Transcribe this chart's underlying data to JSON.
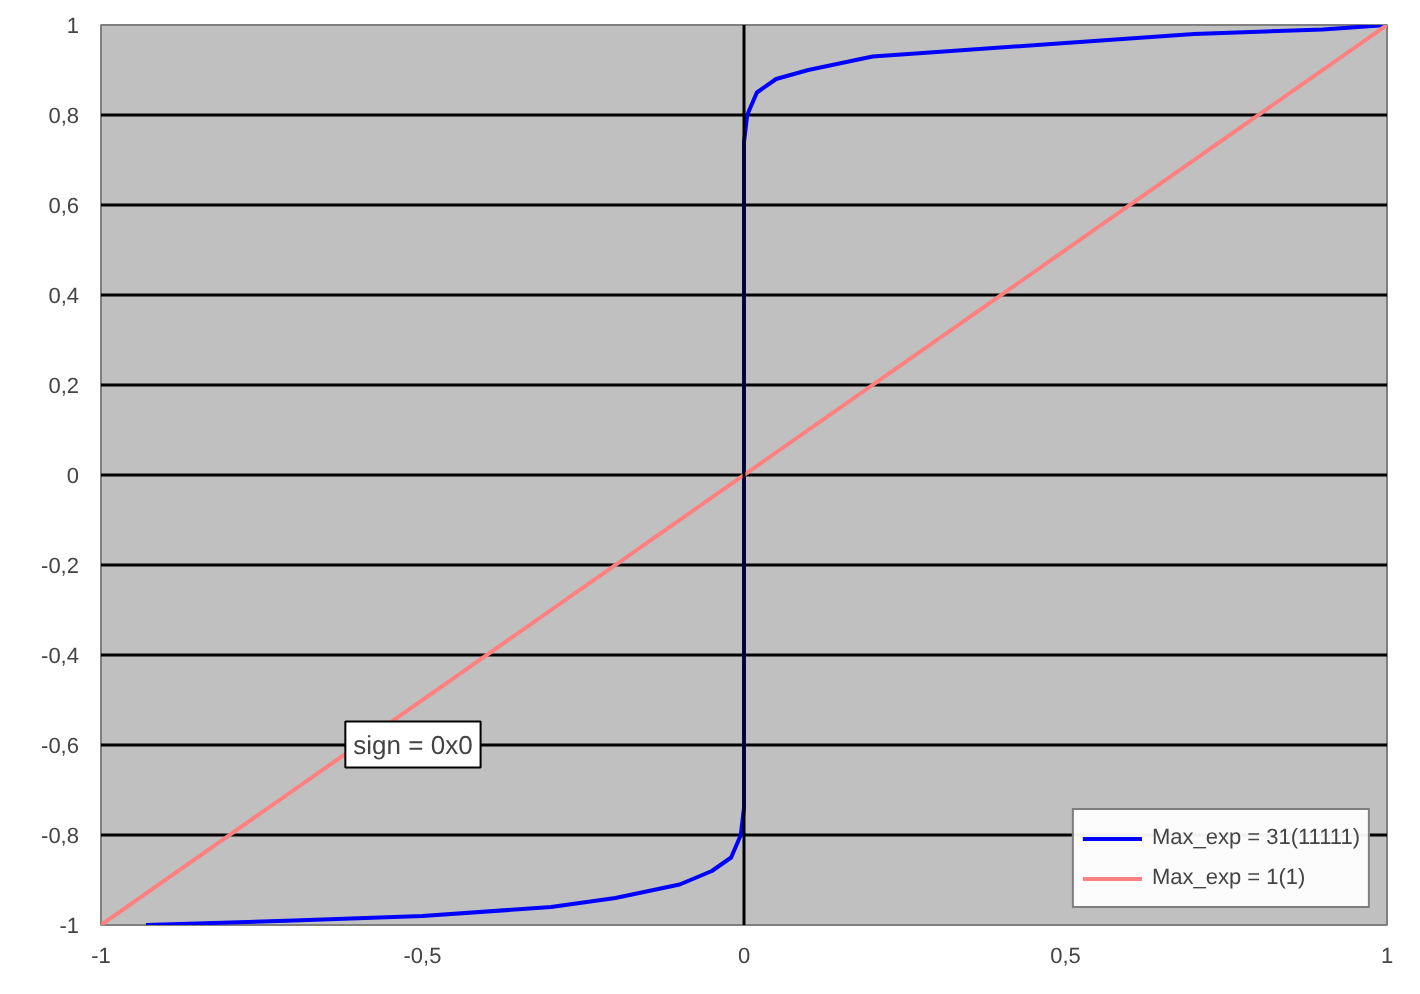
{
  "chart_data": {
    "type": "line",
    "xlim": [
      -1,
      1
    ],
    "ylim": [
      -1,
      1
    ],
    "xticks": [
      -1,
      {
        "value": -0.5,
        "label": "-0,5"
      },
      0,
      {
        "value": 0.5,
        "label": "0,5"
      },
      1
    ],
    "yticks": [
      -1,
      {
        "value": -0.8,
        "label": "-0,8"
      },
      {
        "value": -0.6,
        "label": "-0,6"
      },
      {
        "value": -0.4,
        "label": "-0,4"
      },
      {
        "value": -0.2,
        "label": "-0,2"
      },
      0,
      {
        "value": 0.2,
        "label": "0,2"
      },
      {
        "value": 0.4,
        "label": "0,4"
      },
      {
        "value": 0.6,
        "label": "0,6"
      },
      {
        "value": 0.8,
        "label": "0,8"
      },
      1
    ],
    "grid": "y",
    "legend": "bottom right",
    "marker": "none",
    "line_style": "solid",
    "series": [
      {
        "name": "Max_exp = 31(11111)",
        "color": "#0000ff",
        "x": [
          -0.93,
          -0.7,
          -0.5,
          -0.3,
          -0.2,
          -0.1,
          -0.05,
          -0.02,
          -0.005,
          0,
          0,
          0.005,
          0.02,
          0.05,
          0.1,
          0.2,
          0.3,
          0.5,
          0.7,
          0.9,
          1
        ],
        "values": [
          -1,
          -0.99,
          -0.98,
          -0.96,
          -0.94,
          -0.91,
          -0.88,
          -0.85,
          -0.8,
          -0.74,
          0.74,
          0.8,
          0.85,
          0.88,
          0.9,
          0.93,
          0.94,
          0.96,
          0.98,
          0.99,
          1
        ]
      },
      {
        "name": "Max_exp = 1(1)",
        "color": "#ff8080",
        "x": [
          -1,
          1
        ],
        "values": [
          -1,
          1
        ]
      }
    ],
    "ref_lines": [
      {
        "axis": "x",
        "value": 0,
        "color": "#000000"
      }
    ],
    "annotations": [
      {
        "text": "sign = 0x0",
        "x": -0.62,
        "y": -0.65
      }
    ]
  }
}
